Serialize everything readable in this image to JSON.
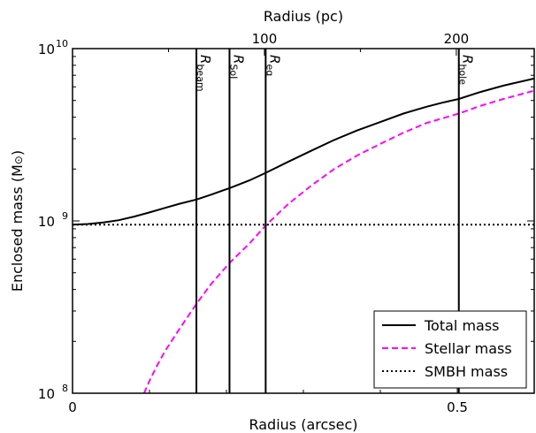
{
  "chart_data": {
    "type": "line",
    "xlabel": "Radius (arcsec)",
    "x2label": "Radius (pc)",
    "ylabel": "Enclosed mass (M",
    "ylabel_sym": "⊙",
    "ylabel_end": ")",
    "xlim": [
      0,
      0.6
    ],
    "ylim": [
      100000000,
      10000000000
    ],
    "yscale": "log",
    "x_ticks": [
      {
        "value": 0,
        "label": "0"
      },
      {
        "value": 0.5,
        "label": "0.5"
      }
    ],
    "x2_ticks": [
      {
        "value": 100,
        "label": "100"
      },
      {
        "value": 200,
        "label": "200"
      }
    ],
    "pc_per_arcsec": 401,
    "y_ticks": [
      {
        "value": 100000000,
        "base": "10",
        "exp": "8"
      },
      {
        "value": 1000000000,
        "base": "10",
        "exp": "9"
      },
      {
        "value": 10000000000,
        "base": "10",
        "exp": "10"
      }
    ],
    "vlines": [
      {
        "x": 0.161,
        "label": "R",
        "sub": "beam"
      },
      {
        "x": 0.204,
        "label": "R",
        "sub": "SoI"
      },
      {
        "x": 0.251,
        "label": "R",
        "sub": "eq"
      },
      {
        "x": 0.502,
        "label": "R",
        "sub": "hole"
      }
    ],
    "series": [
      {
        "name": "Total mass",
        "style": "solid",
        "color": "#000000",
        "points": [
          [
            0.0,
            950000000.0
          ],
          [
            0.02,
            960000000.0
          ],
          [
            0.04,
            980000000.0
          ],
          [
            0.06,
            1010000000.0
          ],
          [
            0.08,
            1060000000.0
          ],
          [
            0.1,
            1120000000.0
          ],
          [
            0.12,
            1190000000.0
          ],
          [
            0.14,
            1260000000.0
          ],
          [
            0.161,
            1330000000.0
          ],
          [
            0.18,
            1420000000.0
          ],
          [
            0.204,
            1550000000.0
          ],
          [
            0.23,
            1720000000.0
          ],
          [
            0.251,
            1900000000.0
          ],
          [
            0.28,
            2200000000.0
          ],
          [
            0.31,
            2550000000.0
          ],
          [
            0.34,
            2950000000.0
          ],
          [
            0.37,
            3350000000.0
          ],
          [
            0.4,
            3750000000.0
          ],
          [
            0.43,
            4200000000.0
          ],
          [
            0.46,
            4600000000.0
          ],
          [
            0.48,
            4850000000.0
          ],
          [
            0.502,
            5100000000.0
          ],
          [
            0.53,
            5600000000.0
          ],
          [
            0.56,
            6100000000.0
          ],
          [
            0.6,
            6700000000.0
          ]
        ]
      },
      {
        "name": "Stellar mass",
        "style": "dashed",
        "color": "#ff00ff",
        "points": [
          [
            0.093,
            100000000.0
          ],
          [
            0.1,
            118000000.0
          ],
          [
            0.11,
            145000000.0
          ],
          [
            0.12,
            175000000.0
          ],
          [
            0.13,
            205000000.0
          ],
          [
            0.14,
            240000000.0
          ],
          [
            0.161,
            330000000.0
          ],
          [
            0.18,
            430000000.0
          ],
          [
            0.204,
            570000000.0
          ],
          [
            0.23,
            740000000.0
          ],
          [
            0.251,
            940000000.0
          ],
          [
            0.28,
            1250000000.0
          ],
          [
            0.31,
            1600000000.0
          ],
          [
            0.34,
            2000000000.0
          ],
          [
            0.37,
            2400000000.0
          ],
          [
            0.4,
            2800000000.0
          ],
          [
            0.43,
            3250000000.0
          ],
          [
            0.46,
            3700000000.0
          ],
          [
            0.502,
            4200000000.0
          ],
          [
            0.53,
            4650000000.0
          ],
          [
            0.56,
            5100000000.0
          ],
          [
            0.6,
            5700000000.0
          ]
        ]
      },
      {
        "name": "SMBH mass",
        "style": "dotted",
        "color": "#000000",
        "points": [
          [
            0.0,
            950000000.0
          ],
          [
            0.6,
            950000000.0
          ]
        ]
      }
    ]
  }
}
